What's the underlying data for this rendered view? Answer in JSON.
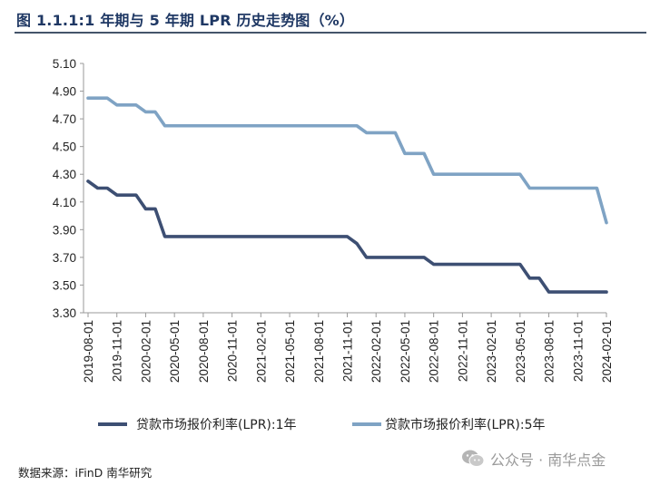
{
  "title": "图 1.1.1:1 年期与 5 年期 LPR 历史走势图（%）",
  "source": "数据来源：iFinD 南华研究",
  "watermark": "公众号 · 南华点金",
  "colors": {
    "lpr1y": "#3d4f73",
    "lpr5y": "#7fa3c4",
    "title": "#1f3864"
  },
  "chart_data": {
    "type": "line",
    "title": "图 1.1.1:1 年期与 5 年期 LPR 历史走势图（%）",
    "ylim": [
      3.3,
      5.1
    ],
    "yticks": [
      "5.10",
      "4.90",
      "4.70",
      "4.50",
      "4.30",
      "4.10",
      "3.90",
      "3.70",
      "3.50",
      "3.30"
    ],
    "xticks": [
      "2019-08-01",
      "2019-11-01",
      "2020-02-01",
      "2020-05-01",
      "2020-08-01",
      "2020-11-01",
      "2021-02-01",
      "2021-05-01",
      "2021-08-01",
      "2021-11-01",
      "2022-02-01",
      "2022-05-01",
      "2022-08-01",
      "2022-11-01",
      "2023-02-01",
      "2023-05-01",
      "2023-08-01",
      "2023-11-01",
      "2024-02-01"
    ],
    "legend": "bottom",
    "grid": false,
    "series": [
      {
        "name": "贷款市场报价利率(LPR):1年",
        "points": [
          [
            "2019-08",
            4.25
          ],
          [
            "2019-09",
            4.2
          ],
          [
            "2019-10",
            4.2
          ],
          [
            "2019-11",
            4.15
          ],
          [
            "2019-12",
            4.15
          ],
          [
            "2020-01",
            4.15
          ],
          [
            "2020-02",
            4.05
          ],
          [
            "2020-03",
            4.05
          ],
          [
            "2020-04",
            3.85
          ],
          [
            "2021-11",
            3.85
          ],
          [
            "2021-12",
            3.8
          ],
          [
            "2022-01",
            3.7
          ],
          [
            "2022-07",
            3.7
          ],
          [
            "2022-08",
            3.65
          ],
          [
            "2023-05",
            3.65
          ],
          [
            "2023-06",
            3.55
          ],
          [
            "2023-07",
            3.55
          ],
          [
            "2023-08",
            3.45
          ],
          [
            "2024-02",
            3.45
          ]
        ]
      },
      {
        "name": "贷款市场报价利率(LPR):5年",
        "points": [
          [
            "2019-08",
            4.85
          ],
          [
            "2019-10",
            4.85
          ],
          [
            "2019-11",
            4.8
          ],
          [
            "2020-01",
            4.8
          ],
          [
            "2020-02",
            4.75
          ],
          [
            "2020-03",
            4.75
          ],
          [
            "2020-04",
            4.65
          ],
          [
            "2021-11",
            4.65
          ],
          [
            "2021-12",
            4.65
          ],
          [
            "2022-01",
            4.6
          ],
          [
            "2022-04",
            4.6
          ],
          [
            "2022-05",
            4.45
          ],
          [
            "2022-07",
            4.45
          ],
          [
            "2022-08",
            4.3
          ],
          [
            "2023-05",
            4.3
          ],
          [
            "2023-06",
            4.2
          ],
          [
            "2024-01",
            4.2
          ],
          [
            "2024-02",
            3.95
          ]
        ]
      }
    ]
  }
}
